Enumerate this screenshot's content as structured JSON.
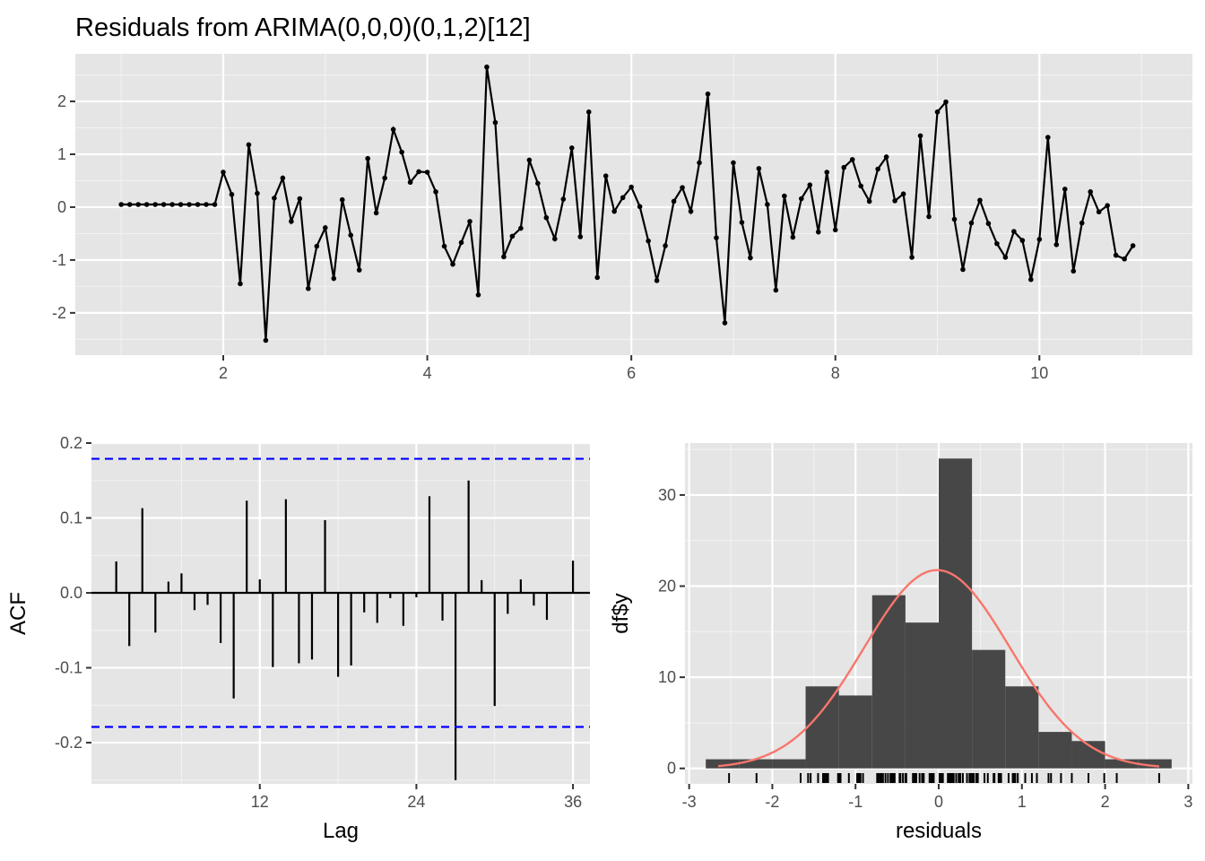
{
  "title": "Residuals from ARIMA(0,0,0)(0,1,2)[12]",
  "chart_data": [
    {
      "type": "line",
      "panel": "residual-timeseries",
      "title": "Residuals from ARIMA(0,0,0)(0,1,2)[12]",
      "xlabel": "",
      "ylabel": "",
      "x_start": 1,
      "x_step": 0.08333333,
      "xlim": [
        0.55,
        11.5
      ],
      "ylim": [
        -2.8,
        2.9
      ],
      "x_ticks": [
        2,
        4,
        6,
        8,
        10
      ],
      "y_ticks": [
        -2,
        -1,
        0,
        1,
        2
      ],
      "x_tick_labels": [
        "2",
        "4",
        "6",
        "8",
        "10"
      ],
      "y_tick_labels": [
        "-2",
        "-1",
        "0",
        "1",
        "2"
      ],
      "grid": true,
      "values": [
        0.05,
        0.05,
        0.05,
        0.05,
        0.05,
        0.05,
        0.05,
        0.05,
        0.05,
        0.05,
        0.05,
        0.05,
        0.66,
        0.24,
        -1.45,
        1.18,
        0.26,
        -2.52,
        0.17,
        0.55,
        -0.27,
        0.16,
        -1.54,
        -0.74,
        -0.39,
        -1.35,
        0.14,
        -0.53,
        -1.19,
        0.92,
        -0.11,
        0.55,
        1.47,
        1.04,
        0.47,
        0.67,
        0.66,
        0.29,
        -0.74,
        -1.08,
        -0.67,
        -0.27,
        -1.66,
        2.65,
        1.6,
        -0.94,
        -0.55,
        -0.4,
        0.89,
        0.45,
        -0.2,
        -0.6,
        0.15,
        1.12,
        -0.56,
        1.8,
        -1.33,
        0.59,
        -0.08,
        0.18,
        0.38,
        0.01,
        -0.64,
        -1.39,
        -0.73,
        0.11,
        0.37,
        -0.08,
        0.84,
        2.14,
        -0.58,
        -2.19,
        0.84,
        -0.29,
        -0.96,
        0.73,
        0.05,
        -1.57,
        0.21,
        -0.57,
        0.16,
        0.42,
        -0.47,
        0.66,
        -0.43,
        0.75,
        0.9,
        0.4,
        0.11,
        0.72,
        0.95,
        0.12,
        0.25,
        -0.95,
        1.35,
        -0.18,
        1.8,
        1.99,
        -0.23,
        -1.18,
        -0.3,
        0.13,
        -0.31,
        -0.69,
        -0.95,
        -0.46,
        -0.63,
        -1.37,
        -0.61,
        1.32,
        -0.71,
        0.34,
        -1.21,
        -0.3,
        0.29,
        -0.09,
        0.03,
        -0.91,
        -0.98,
        -0.73
      ]
    },
    {
      "type": "bar",
      "panel": "acf",
      "xlabel": "Lag",
      "ylabel": "ACF",
      "lags": [
        1,
        2,
        3,
        4,
        5,
        6,
        7,
        8,
        9,
        10,
        11,
        12,
        13,
        14,
        15,
        16,
        17,
        18,
        19,
        20,
        21,
        22,
        23,
        24,
        25,
        26,
        27,
        28,
        29,
        30,
        31,
        32,
        33,
        34,
        35,
        36
      ],
      "values": [
        0.042,
        -0.071,
        0.113,
        -0.053,
        0.015,
        0.026,
        -0.023,
        -0.016,
        -0.067,
        -0.141,
        0.123,
        0.018,
        -0.099,
        0.125,
        -0.094,
        -0.089,
        0.097,
        -0.112,
        -0.097,
        -0.026,
        -0.04,
        -0.007,
        -0.044,
        -0.006,
        0.129,
        -0.037,
        -0.25,
        0.15,
        0.017,
        -0.151,
        -0.028,
        0.018,
        -0.017,
        -0.036,
        0,
        0.043
      ],
      "confidence_bounds": [
        0.179,
        -0.179
      ],
      "xlim": [
        -0.9,
        37.3
      ],
      "ylim": [
        -0.255,
        0.2
      ],
      "x_ticks": [
        12,
        24,
        36
      ],
      "y_ticks": [
        -0.2,
        -0.1,
        0.0,
        0.1,
        0.2
      ],
      "x_tick_labels": [
        "12",
        "24",
        "36"
      ],
      "y_tick_labels": [
        "-0.2",
        "-0.1",
        "0.0",
        "0.1",
        "0.2"
      ],
      "grid": true,
      "bound_color": "#0000ff"
    },
    {
      "type": "bar",
      "panel": "histogram",
      "xlabel": "residuals",
      "ylabel": "df$y",
      "bin_edges": [
        -2.8,
        -2.4,
        -2.0,
        -1.6,
        -1.2,
        -0.8,
        -0.4,
        0.0,
        0.4,
        0.8,
        1.2,
        1.6,
        2.0,
        2.4,
        2.8
      ],
      "counts": [
        1,
        1,
        1,
        9,
        8,
        19,
        16,
        34,
        13,
        9,
        4,
        3,
        1,
        1
      ],
      "density_curve": {
        "mean": -0.02,
        "sd": 0.88,
        "n": 120,
        "binwidth": 0.4
      },
      "rug": [
        -2.52,
        -2.19,
        -1.66,
        -1.57,
        -1.54,
        -1.45,
        -1.39,
        -1.37,
        -1.35,
        -1.33,
        -1.21,
        -1.19,
        -1.18,
        -1.08,
        -0.98,
        -0.96,
        -0.95,
        -0.94,
        -0.91,
        -0.74,
        -0.73,
        -0.71,
        -0.69,
        -0.67,
        -0.64,
        -0.61,
        -0.58,
        -0.57,
        -0.56,
        -0.55,
        -0.53,
        -0.47,
        -0.46,
        -0.43,
        -0.4,
        -0.39,
        -0.31,
        -0.3,
        -0.29,
        -0.27,
        -0.23,
        -0.2,
        -0.18,
        -0.11,
        -0.09,
        -0.08,
        -0.06,
        0.01,
        0.03,
        0.05,
        0.11,
        0.12,
        0.13,
        0.14,
        0.15,
        0.16,
        0.17,
        0.18,
        0.21,
        0.24,
        0.25,
        0.26,
        0.29,
        0.34,
        0.37,
        0.38,
        0.4,
        0.42,
        0.45,
        0.47,
        0.55,
        0.59,
        0.66,
        0.67,
        0.72,
        0.73,
        0.75,
        0.84,
        0.89,
        0.9,
        0.92,
        0.95,
        1.04,
        1.12,
        1.18,
        1.32,
        1.35,
        1.47,
        1.6,
        1.8,
        1.99,
        2.14,
        2.65
      ],
      "xlim": [
        -3.05,
        3.05
      ],
      "ylim": [
        -1.7,
        35.7
      ],
      "x_ticks": [
        -3,
        -2,
        -1,
        0,
        1,
        2,
        3
      ],
      "y_ticks": [
        0,
        10,
        20,
        30
      ],
      "x_tick_labels": [
        "-3",
        "-2",
        "-1",
        "0",
        "1",
        "2",
        "3"
      ],
      "y_tick_labels": [
        "0",
        "10",
        "20",
        "30"
      ],
      "grid": true,
      "bar_color": "#474747",
      "curve_color": "#f8766d"
    }
  ]
}
